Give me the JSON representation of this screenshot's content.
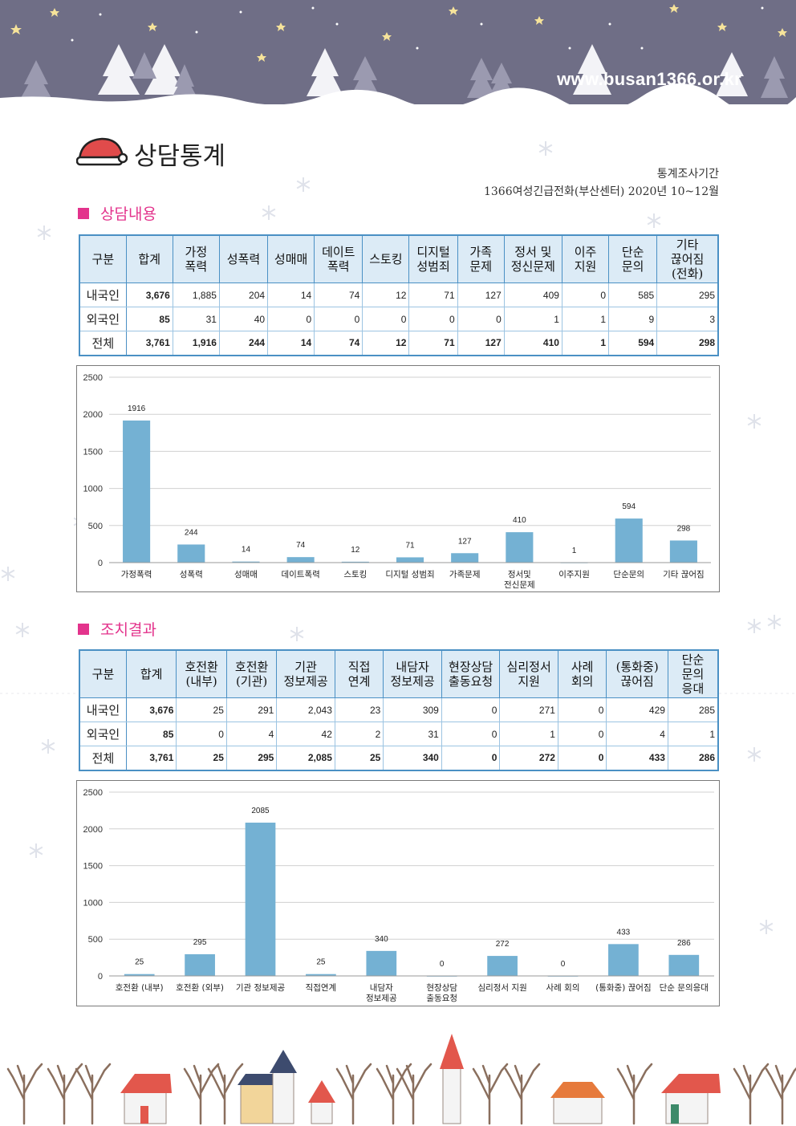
{
  "header": {
    "url": "www.busan1366.or.kr"
  },
  "page_title": "상담통계",
  "period": {
    "label": "통계조사기간",
    "text": "1366여성긴급전화(부산센터) 2020년 10~12월"
  },
  "section1": {
    "title": "상담내용",
    "columns": [
      "구분",
      "합계",
      "가정\n폭력",
      "성폭력",
      "성매매",
      "데이트\n폭력",
      "스토킹",
      "디지털\n성범죄",
      "가족\n문제",
      "정서 및\n정신문제",
      "이주\n지원",
      "단순\n문의",
      "기타\n끊어짐\n(전화)"
    ],
    "rows": [
      {
        "label": "내국인",
        "values": [
          "3,676",
          "1,885",
          "204",
          "14",
          "74",
          "12",
          "71",
          "127",
          "409",
          "0",
          "585",
          "295"
        ]
      },
      {
        "label": "외국인",
        "values": [
          "85",
          "31",
          "40",
          "0",
          "0",
          "0",
          "0",
          "0",
          "1",
          "1",
          "9",
          "3"
        ]
      },
      {
        "label": "전체",
        "values": [
          "3,761",
          "1,916",
          "244",
          "14",
          "74",
          "12",
          "71",
          "127",
          "410",
          "1",
          "594",
          "298"
        ]
      }
    ]
  },
  "section2": {
    "title": "조치결과",
    "columns": [
      "구분",
      "합계",
      "호전환\n(내부)",
      "호전환\n(기관)",
      "기관\n정보제공",
      "직접\n연계",
      "내담자\n정보제공",
      "현장상담\n출동요청",
      "심리정서\n지원",
      "사례\n회의",
      "(통화중)\n끊어짐",
      "단순\n문의\n응대"
    ],
    "rows": [
      {
        "label": "내국인",
        "values": [
          "3,676",
          "25",
          "291",
          "2,043",
          "23",
          "309",
          "0",
          "271",
          "0",
          "429",
          "285"
        ]
      },
      {
        "label": "외국인",
        "values": [
          "85",
          "0",
          "4",
          "42",
          "2",
          "31",
          "0",
          "1",
          "0",
          "4",
          "1"
        ]
      },
      {
        "label": "전체",
        "values": [
          "3,761",
          "25",
          "295",
          "2,085",
          "25",
          "340",
          "0",
          "272",
          "0",
          "433",
          "286"
        ]
      }
    ]
  },
  "colors": {
    "bar": "#74b1d3",
    "accent": "#e3338c",
    "table_border": "#4a90c4",
    "header_bg": "#6f6e86"
  },
  "chart_data": [
    {
      "type": "bar",
      "categories": [
        "가정폭력",
        "성폭력",
        "성매매",
        "데이트폭력",
        "스토킹",
        "디지털 성범죄",
        "가족문제",
        "정서및\n전신문제",
        "이주지원",
        "단순문의",
        "기타 끊어짐"
      ],
      "values": [
        1916,
        244,
        14,
        74,
        12,
        71,
        127,
        410,
        1,
        594,
        298
      ],
      "yticks": [
        0,
        500,
        1000,
        1500,
        2000,
        2500
      ],
      "ylim": [
        0,
        2500
      ],
      "grid": true
    },
    {
      "type": "bar",
      "categories": [
        "호전환 (내부)",
        "호전환 (외부)",
        "기관 정보제공",
        "직접연계",
        "내담자\n정보제공",
        "현장상담\n출동요청",
        "심리정서 지원",
        "사례 회의",
        "(통화중) 끊어짐",
        "단순 문의응대"
      ],
      "values": [
        25,
        295,
        2085,
        25,
        340,
        0,
        272,
        0,
        433,
        286
      ],
      "yticks": [
        0,
        500,
        1000,
        1500,
        2000,
        2500
      ],
      "ylim": [
        0,
        2500
      ],
      "grid": true
    }
  ]
}
